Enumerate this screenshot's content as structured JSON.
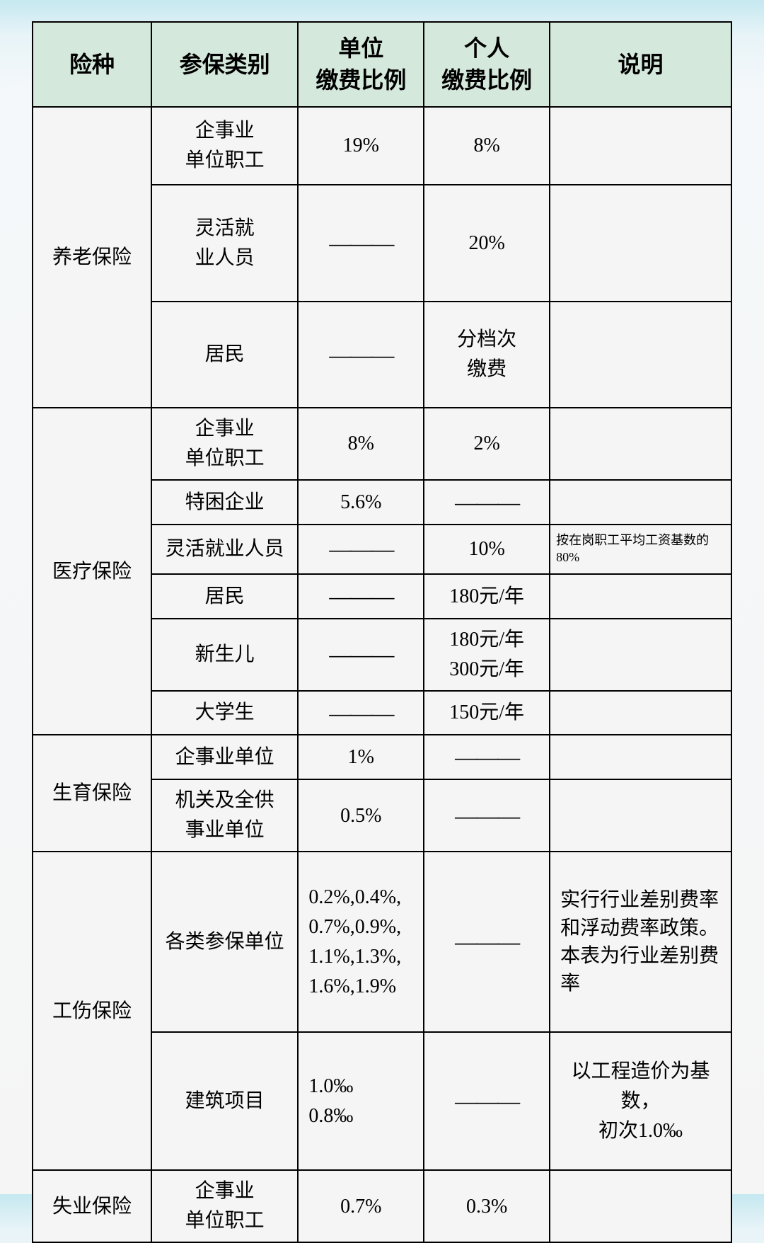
{
  "headers": {
    "col1": "险种",
    "col2": "参保类别",
    "col3": "单位\n缴费比例",
    "col4": "个人\n缴费比例",
    "col5": "说明"
  },
  "dash": "———",
  "sections": {
    "pension": {
      "name": "养老保险",
      "rows": [
        {
          "category": "企事业\n单位职工",
          "unit": "19%",
          "personal": "8%",
          "note": ""
        },
        {
          "category": "灵活就\n业人员",
          "unit": "dash",
          "personal": "20%",
          "note": ""
        },
        {
          "category": "居民",
          "unit": "dash",
          "personal": "分档次\n缴费",
          "note": ""
        }
      ]
    },
    "medical": {
      "name": "医疗保险",
      "rows": [
        {
          "category": "企事业\n单位职工",
          "unit": "8%",
          "personal": "2%",
          "note": ""
        },
        {
          "category": "特困企业",
          "unit": "5.6%",
          "personal": "dash",
          "note": ""
        },
        {
          "category": "灵活就业人员",
          "unit": "dash",
          "personal": "10%",
          "note": "按在岗职工平均工资基数的80%"
        },
        {
          "category": "居民",
          "unit": "dash",
          "personal": "180元/年",
          "note": ""
        },
        {
          "category": "新生儿",
          "unit": "dash",
          "personal": "180元/年\n300元/年",
          "note": ""
        },
        {
          "category": "大学生",
          "unit": "dash",
          "personal": "150元/年",
          "note": ""
        }
      ]
    },
    "maternity": {
      "name": "生育保险",
      "rows": [
        {
          "category": "企事业单位",
          "unit": "1%",
          "personal": "dash",
          "note": ""
        },
        {
          "category": "机关及全供\n事业单位",
          "unit": "0.5%",
          "personal": "dash",
          "note": ""
        }
      ]
    },
    "injury": {
      "name": "工伤保险",
      "rows": [
        {
          "category": "各类参保单位",
          "unit": "0.2%,0.4%,\n0.7%,0.9%,\n1.1%,1.3%,\n1.6%,1.9%",
          "personal": "dash",
          "note": "实行行业差别费率和浮动费率政策。本表为行业差别费率"
        },
        {
          "category": "建筑项目",
          "unit": "1.0‰\n0.8‰",
          "personal": "dash",
          "note": "以工程造价为基数，\n初次1.0‰"
        }
      ]
    },
    "unemployment": {
      "name": "失业保险",
      "rows": [
        {
          "category": "企事业\n单位职工",
          "unit": "0.7%",
          "personal": "0.3%",
          "note": ""
        }
      ]
    }
  }
}
